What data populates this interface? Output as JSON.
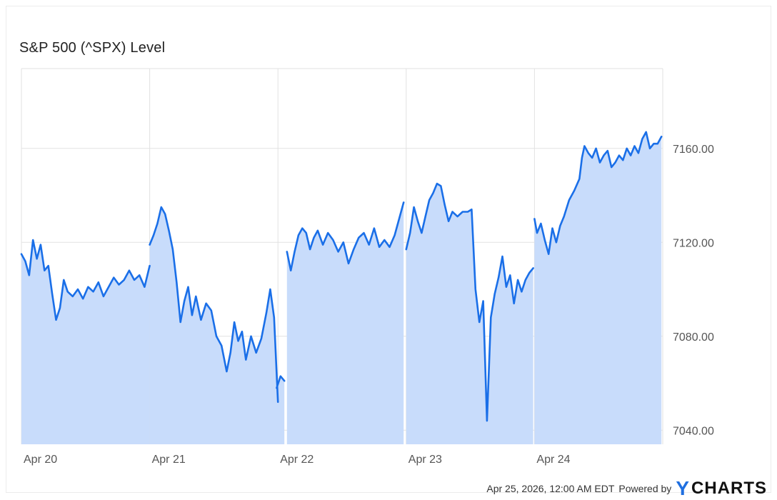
{
  "header": {
    "title": "S&P 500 (^SPX) Level"
  },
  "footer": {
    "timestamp": "Apr 25, 2026, 12:00 AM EDT",
    "powered_by": "Powered by",
    "brand_mark": "Y",
    "brand_rest": "CHARTS"
  },
  "colors": {
    "line": "#1a6fe8",
    "fill": "#c8dcfb",
    "grid": "#e2e2e2",
    "brand": "#1f6fe0"
  },
  "chart_data": {
    "type": "area",
    "title": "S&P 500 (^SPX) Level",
    "xlabel": "",
    "ylabel": "",
    "ylim": [
      7034,
      7194
    ],
    "y_ticks": [
      7040,
      7080,
      7120,
      7160
    ],
    "y_tick_labels": [
      "7040.00",
      "7080.00",
      "7120.00",
      "7160.00"
    ],
    "x_ticks": [
      0,
      1,
      2,
      3,
      4
    ],
    "x_tick_labels": [
      "Apr 20",
      "Apr 21",
      "Apr 22",
      "Apr 23",
      "Apr 24"
    ],
    "xlim": [
      0,
      5
    ],
    "grid": true,
    "series": [
      {
        "segments": [
          [
            [
              0.0,
              7115
            ],
            [
              0.03,
              7112
            ],
            [
              0.06,
              7106
            ],
            [
              0.09,
              7121
            ],
            [
              0.12,
              7113
            ],
            [
              0.15,
              7119
            ],
            [
              0.18,
              7108
            ],
            [
              0.21,
              7110
            ],
            [
              0.24,
              7098
            ],
            [
              0.27,
              7087
            ],
            [
              0.3,
              7092
            ],
            [
              0.33,
              7104
            ],
            [
              0.36,
              7099
            ],
            [
              0.4,
              7097
            ],
            [
              0.44,
              7100
            ],
            [
              0.48,
              7096
            ],
            [
              0.52,
              7101
            ],
            [
              0.56,
              7099
            ],
            [
              0.6,
              7103
            ],
            [
              0.64,
              7097
            ],
            [
              0.68,
              7101
            ],
            [
              0.72,
              7105
            ],
            [
              0.76,
              7102
            ],
            [
              0.8,
              7104
            ],
            [
              0.84,
              7108
            ],
            [
              0.88,
              7104
            ],
            [
              0.92,
              7106
            ],
            [
              0.96,
              7101
            ],
            [
              1.0,
              7110
            ]
          ],
          [
            [
              1.0,
              7119
            ],
            [
              1.03,
              7123
            ],
            [
              1.06,
              7128
            ],
            [
              1.09,
              7135
            ],
            [
              1.12,
              7132
            ],
            [
              1.15,
              7125
            ],
            [
              1.18,
              7117
            ],
            [
              1.21,
              7103
            ],
            [
              1.24,
              7086
            ],
            [
              1.27,
              7095
            ],
            [
              1.3,
              7101
            ],
            [
              1.33,
              7089
            ],
            [
              1.36,
              7097
            ],
            [
              1.4,
              7087
            ],
            [
              1.44,
              7094
            ],
            [
              1.48,
              7091
            ],
            [
              1.52,
              7080
            ],
            [
              1.56,
              7076
            ],
            [
              1.6,
              7065
            ],
            [
              1.63,
              7073
            ],
            [
              1.66,
              7086
            ],
            [
              1.69,
              7078
            ],
            [
              1.72,
              7082
            ],
            [
              1.75,
              7070
            ],
            [
              1.79,
              7080
            ],
            [
              1.83,
              7073
            ],
            [
              1.87,
              7079
            ],
            [
              1.91,
              7090
            ],
            [
              1.94,
              7100
            ],
            [
              1.97,
              7088
            ],
            [
              2.0,
              7052
            ]
          ],
          [
            [
              1.99,
              7058
            ],
            [
              2.02,
              7063
            ],
            [
              2.05,
              7061
            ]
          ],
          [
            [
              2.07,
              7116
            ],
            [
              2.1,
              7108
            ],
            [
              2.13,
              7116
            ],
            [
              2.16,
              7123
            ],
            [
              2.19,
              7126
            ],
            [
              2.22,
              7124
            ],
            [
              2.25,
              7117
            ],
            [
              2.28,
              7122
            ],
            [
              2.31,
              7125
            ],
            [
              2.35,
              7119
            ],
            [
              2.39,
              7124
            ],
            [
              2.43,
              7121
            ],
            [
              2.47,
              7116
            ],
            [
              2.51,
              7120
            ],
            [
              2.55,
              7111
            ],
            [
              2.59,
              7117
            ],
            [
              2.63,
              7122
            ],
            [
              2.67,
              7124
            ],
            [
              2.71,
              7119
            ],
            [
              2.75,
              7126
            ],
            [
              2.79,
              7118
            ],
            [
              2.83,
              7121
            ],
            [
              2.87,
              7118
            ],
            [
              2.91,
              7123
            ],
            [
              2.95,
              7131
            ],
            [
              2.98,
              7137
            ]
          ],
          [
            [
              3.0,
              7117
            ],
            [
              3.03,
              7124
            ],
            [
              3.06,
              7135
            ],
            [
              3.09,
              7129
            ],
            [
              3.12,
              7124
            ],
            [
              3.15,
              7131
            ],
            [
              3.18,
              7138
            ],
            [
              3.21,
              7141
            ],
            [
              3.24,
              7145
            ],
            [
              3.27,
              7144
            ],
            [
              3.3,
              7136
            ],
            [
              3.33,
              7129
            ],
            [
              3.36,
              7133
            ],
            [
              3.4,
              7131
            ],
            [
              3.44,
              7133
            ],
            [
              3.48,
              7133
            ],
            [
              3.51,
              7134
            ],
            [
              3.54,
              7100
            ],
            [
              3.57,
              7086
            ],
            [
              3.6,
              7095
            ],
            [
              3.63,
              7044
            ],
            [
              3.66,
              7088
            ],
            [
              3.69,
              7098
            ],
            [
              3.72,
              7105
            ],
            [
              3.75,
              7114
            ],
            [
              3.78,
              7101
            ],
            [
              3.81,
              7106
            ],
            [
              3.84,
              7094
            ],
            [
              3.87,
              7104
            ],
            [
              3.9,
              7099
            ],
            [
              3.93,
              7104
            ],
            [
              3.96,
              7107
            ],
            [
              3.99,
              7109
            ]
          ],
          [
            [
              4.0,
              7130
            ],
            [
              4.02,
              7124
            ],
            [
              4.05,
              7128
            ],
            [
              4.08,
              7121
            ],
            [
              4.11,
              7115
            ],
            [
              4.14,
              7126
            ],
            [
              4.17,
              7120
            ],
            [
              4.2,
              7127
            ],
            [
              4.23,
              7131
            ],
            [
              4.27,
              7138
            ],
            [
              4.31,
              7142
            ],
            [
              4.35,
              7147
            ],
            [
              4.37,
              7156
            ],
            [
              4.39,
              7161
            ],
            [
              4.42,
              7158
            ],
            [
              4.45,
              7156
            ],
            [
              4.48,
              7160
            ],
            [
              4.51,
              7154
            ],
            [
              4.54,
              7157
            ],
            [
              4.57,
              7159
            ],
            [
              4.6,
              7152
            ],
            [
              4.63,
              7154
            ],
            [
              4.66,
              7157
            ],
            [
              4.69,
              7155
            ],
            [
              4.72,
              7160
            ],
            [
              4.75,
              7157
            ],
            [
              4.78,
              7161
            ],
            [
              4.81,
              7158
            ],
            [
              4.84,
              7164
            ],
            [
              4.87,
              7167
            ],
            [
              4.9,
              7160
            ],
            [
              4.93,
              7162
            ],
            [
              4.96,
              7162
            ],
            [
              4.99,
              7165
            ]
          ]
        ]
      }
    ]
  }
}
